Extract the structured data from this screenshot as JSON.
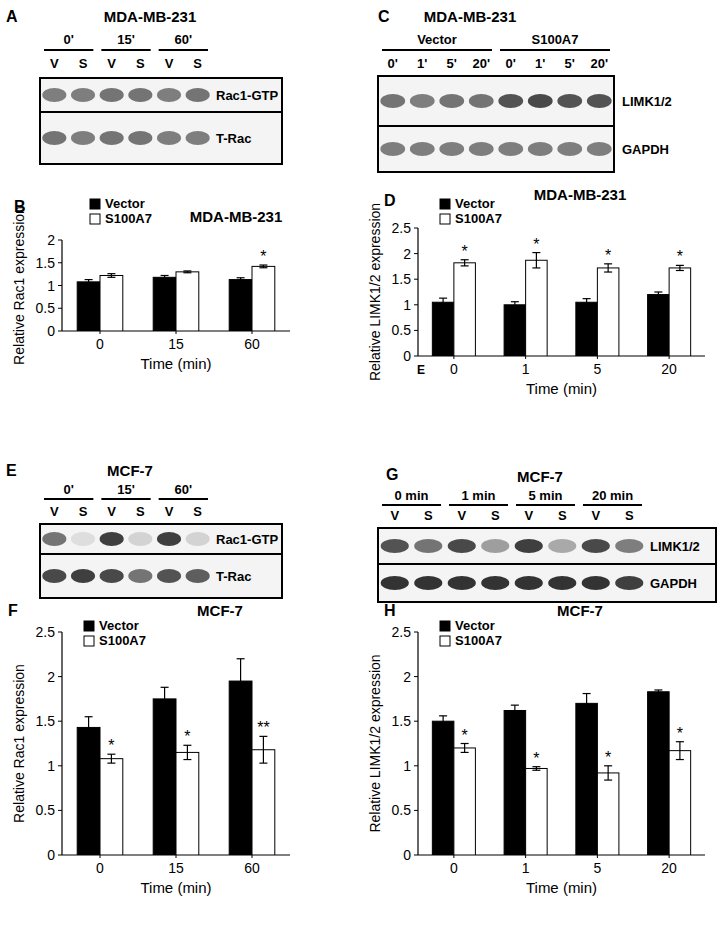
{
  "figure": {
    "panel_labels": [
      "A",
      "B",
      "C",
      "D",
      "E",
      "E",
      "F",
      "G",
      "H"
    ]
  },
  "blots": [
    {
      "title": "MDA-MB-231",
      "groups": [
        "0'",
        "15'",
        "60'"
      ],
      "lanes": [
        "V",
        "S",
        "V",
        "S",
        "V",
        "S"
      ],
      "rows": [
        "Rac1-GTP",
        "T-Rac"
      ]
    },
    {
      "title": "MDA-MB-231",
      "groups": [
        "Vector",
        "S100A7"
      ],
      "lanes": [
        "0'",
        "1'",
        "5'",
        "20'",
        "0'",
        "1'",
        "5'",
        "20'"
      ],
      "rows": [
        "LIMK1/2",
        "GAPDH"
      ]
    },
    {
      "title": "MCF-7",
      "groups": [
        "0'",
        "15'",
        "60'"
      ],
      "lanes": [
        "V",
        "S",
        "V",
        "S",
        "V",
        "S"
      ],
      "rows": [
        "Rac1-GTP",
        "T-Rac"
      ]
    },
    {
      "title": "MCF-7",
      "groups": [
        "0 min",
        "1 min",
        "5 min",
        "20 min"
      ],
      "lanes": [
        "V",
        "S",
        "V",
        "S",
        "V",
        "S",
        "V",
        "S"
      ],
      "rows": [
        "LIMK1/2",
        "GAPDH"
      ]
    }
  ],
  "chart_data": [
    {
      "type": "bar",
      "title": "MDA-MB-231",
      "x_label": "Time (min)",
      "y_label": "Relative Rac1 expression",
      "categories": [
        "0",
        "15",
        "60"
      ],
      "ylim": [
        0,
        2
      ],
      "yticks": [
        0,
        0.5,
        1,
        1.5,
        2
      ],
      "legend": "upper left",
      "series": [
        {
          "name": "Vector",
          "color": "#000000",
          "values": [
            1.08,
            1.18,
            1.13
          ],
          "errors": [
            0.05,
            0.04,
            0.04
          ],
          "significance": [
            null,
            null,
            null
          ]
        },
        {
          "name": "S100A7",
          "color": "#ffffff",
          "values": [
            1.22,
            1.3,
            1.42
          ],
          "errors": [
            0.04,
            0.02,
            0.03
          ],
          "significance": [
            null,
            null,
            "*"
          ]
        }
      ]
    },
    {
      "type": "bar",
      "title": "MDA-MB-231",
      "x_label": "Time (min)",
      "y_label": "Relative LIMK1/2  expression",
      "categories": [
        "0",
        "1",
        "5",
        "20"
      ],
      "ylim": [
        0,
        2.5
      ],
      "yticks": [
        0,
        0.5,
        1,
        1.5,
        2,
        2.5
      ],
      "legend": "upper left",
      "series": [
        {
          "name": "Vector",
          "color": "#000000",
          "values": [
            1.05,
            1.0,
            1.05,
            1.2
          ],
          "errors": [
            0.08,
            0.06,
            0.07,
            0.05
          ],
          "significance": [
            null,
            null,
            null,
            null
          ]
        },
        {
          "name": "S100A7",
          "color": "#ffffff",
          "values": [
            1.82,
            1.87,
            1.72,
            1.72
          ],
          "errors": [
            0.06,
            0.15,
            0.08,
            0.05
          ],
          "significance": [
            "*",
            "*",
            "*",
            "*"
          ]
        }
      ]
    },
    {
      "type": "bar",
      "title": "MCF-7",
      "x_label": "Time (min)",
      "y_label": "Relative Rac1 expression",
      "categories": [
        "0",
        "15",
        "60"
      ],
      "ylim": [
        0,
        2.5
      ],
      "yticks": [
        0,
        0.5,
        1,
        1.5,
        2,
        2.5
      ],
      "legend": "upper left",
      "series": [
        {
          "name": "Vector",
          "color": "#000000",
          "values": [
            1.43,
            1.75,
            1.95
          ],
          "errors": [
            0.12,
            0.13,
            0.25
          ],
          "significance": [
            null,
            null,
            null
          ]
        },
        {
          "name": "S100A7",
          "color": "#ffffff",
          "values": [
            1.08,
            1.15,
            1.18
          ],
          "errors": [
            0.05,
            0.08,
            0.15
          ],
          "significance": [
            "*",
            "*",
            "**"
          ]
        }
      ]
    },
    {
      "type": "bar",
      "title": "MCF-7",
      "x_label": "Time (min)",
      "y_label": "Relative LIMK1/2 expression",
      "categories": [
        "0",
        "1",
        "5",
        "20"
      ],
      "ylim": [
        0,
        2.5
      ],
      "yticks": [
        0,
        0.5,
        1,
        1.5,
        2,
        2.5
      ],
      "legend": "upper left",
      "series": [
        {
          "name": "Vector",
          "color": "#000000",
          "values": [
            1.5,
            1.62,
            1.7,
            1.83
          ],
          "errors": [
            0.06,
            0.06,
            0.11,
            0.02
          ],
          "significance": [
            null,
            null,
            null,
            null
          ]
        },
        {
          "name": "S100A7",
          "color": "#ffffff",
          "values": [
            1.2,
            0.97,
            0.92,
            1.17
          ],
          "errors": [
            0.05,
            0.02,
            0.08,
            0.1
          ],
          "significance": [
            "*",
            "*",
            "*",
            "*"
          ]
        }
      ]
    }
  ]
}
